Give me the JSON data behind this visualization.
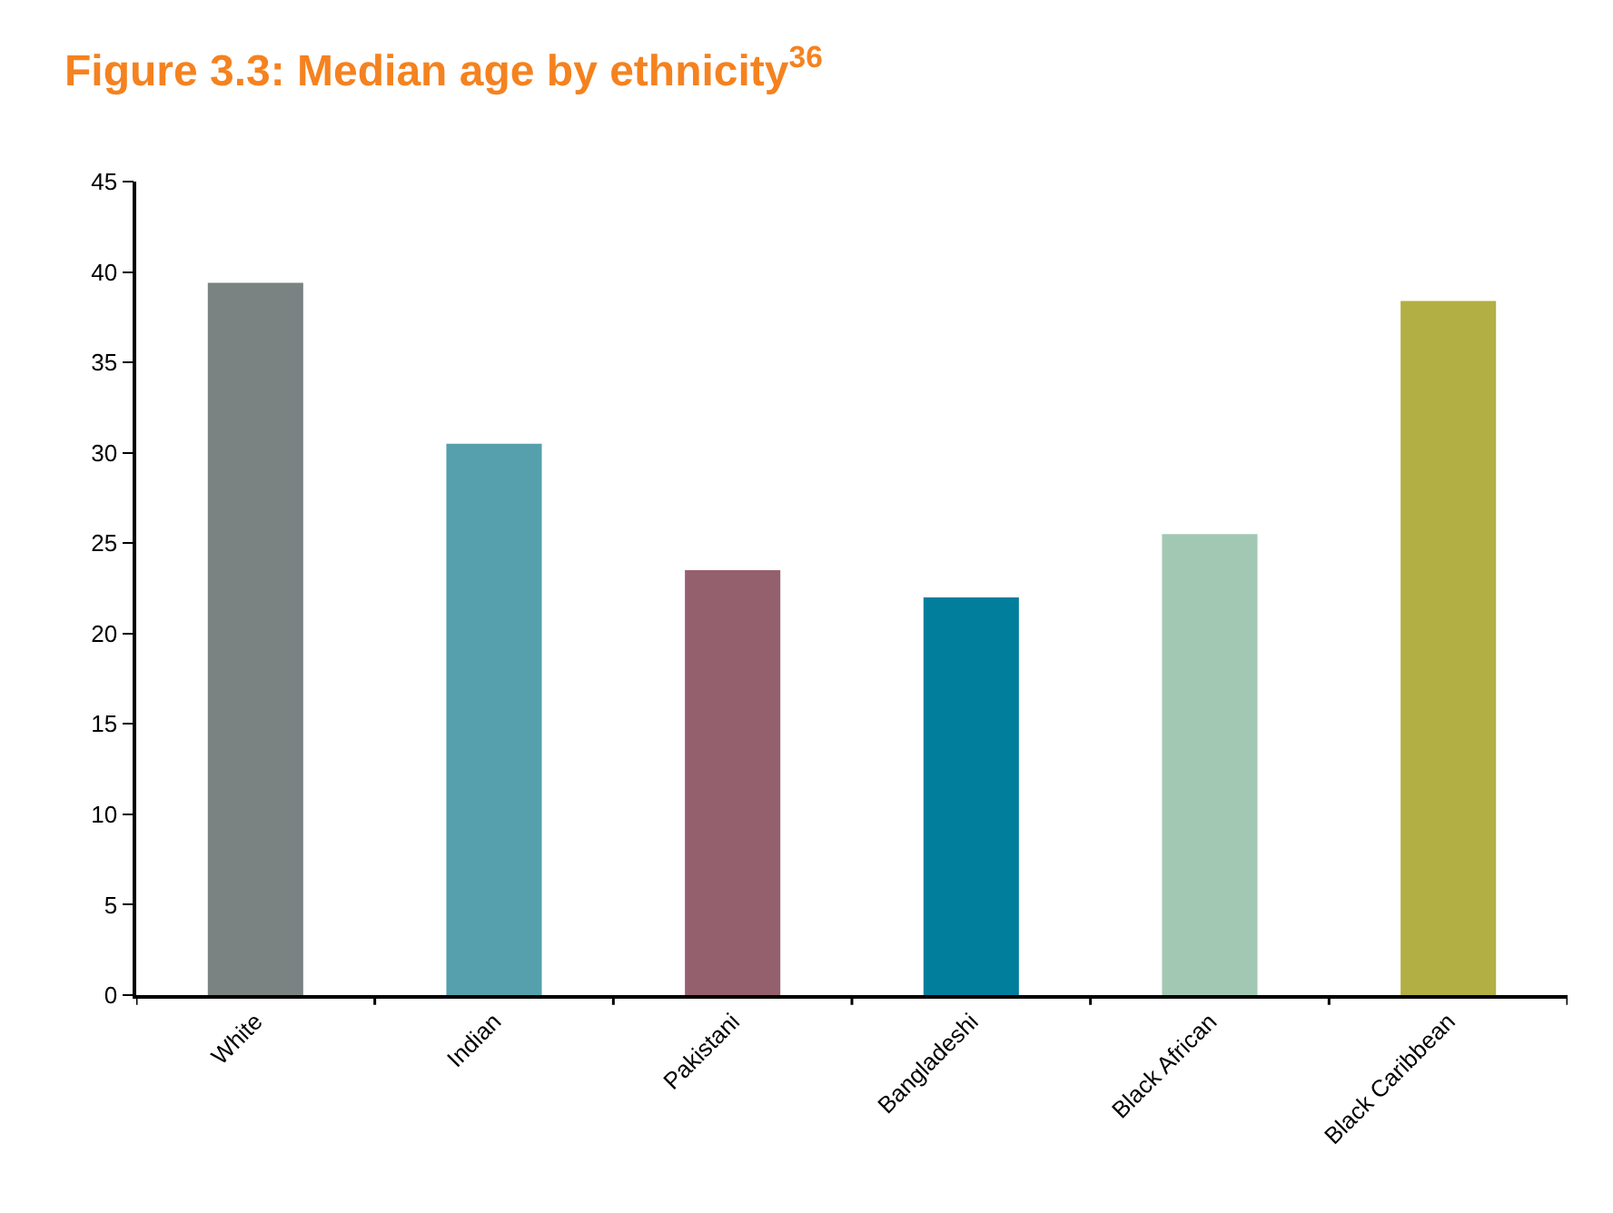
{
  "chart_data": {
    "type": "bar",
    "title": "Figure 3.3: Median age by ethnicity$^{36}$",
    "categories": [
      "White",
      "Indian",
      "Pakistani",
      "Bangladeshi",
      "Black African",
      "Black Caribbean"
    ],
    "values": [
      39.4,
      30.5,
      23.5,
      22.0,
      25.5,
      38.4
    ],
    "colors": [
      "#7a8282",
      "#55a0ac",
      "#95606e",
      "#007e9c",
      "#a2c8b3",
      "#b2af44"
    ],
    "ylim": [
      0,
      45
    ],
    "yticks": [
      0,
      5,
      10,
      15,
      20,
      25,
      30,
      35,
      40,
      45
    ]
  }
}
